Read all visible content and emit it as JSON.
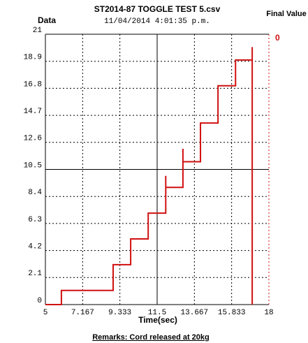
{
  "chart_data": {
    "type": "line",
    "title": "ST2014-87 TOGGLE TEST 5.csv",
    "subtitle": "11/04/2014 4:01:35 p.m.",
    "ylabel": "Data",
    "xlabel": "Time(sec)",
    "final_value_label": "Final Value",
    "final_value": 0,
    "remarks": "Remarks: Cord released at 20kg",
    "xlim": [
      5,
      18
    ],
    "ylim": [
      0,
      21
    ],
    "xticks": [
      5,
      7.167,
      9.333,
      11.5,
      13.667,
      15.833,
      18
    ],
    "yticks": [
      0,
      2.1,
      4.2,
      6.3,
      8.4,
      10.5,
      12.6,
      14.7,
      16.8,
      18.9,
      21
    ],
    "grid": true,
    "x": [
      5,
      5.93,
      5.93,
      8.94,
      8.94,
      9.96,
      9.96,
      10.98,
      10.98,
      12.0,
      12.0,
      12.0,
      13.0,
      13.0,
      13.0,
      14.02,
      14.02,
      15.04,
      15.04,
      16.06,
      16.06,
      17.03,
      17.03,
      17.03
    ],
    "series": [
      {
        "color": "#d01010",
        "values": [
          0,
          0,
          1.1,
          1.1,
          3.1,
          3.1,
          5.1,
          5.1,
          7.1,
          7.1,
          10.0,
          9.1,
          9.1,
          12.1,
          11.1,
          11.1,
          14.1,
          14.1,
          17.0,
          17.0,
          19.0,
          19.0,
          20.0,
          0
        ]
      }
    ]
  }
}
